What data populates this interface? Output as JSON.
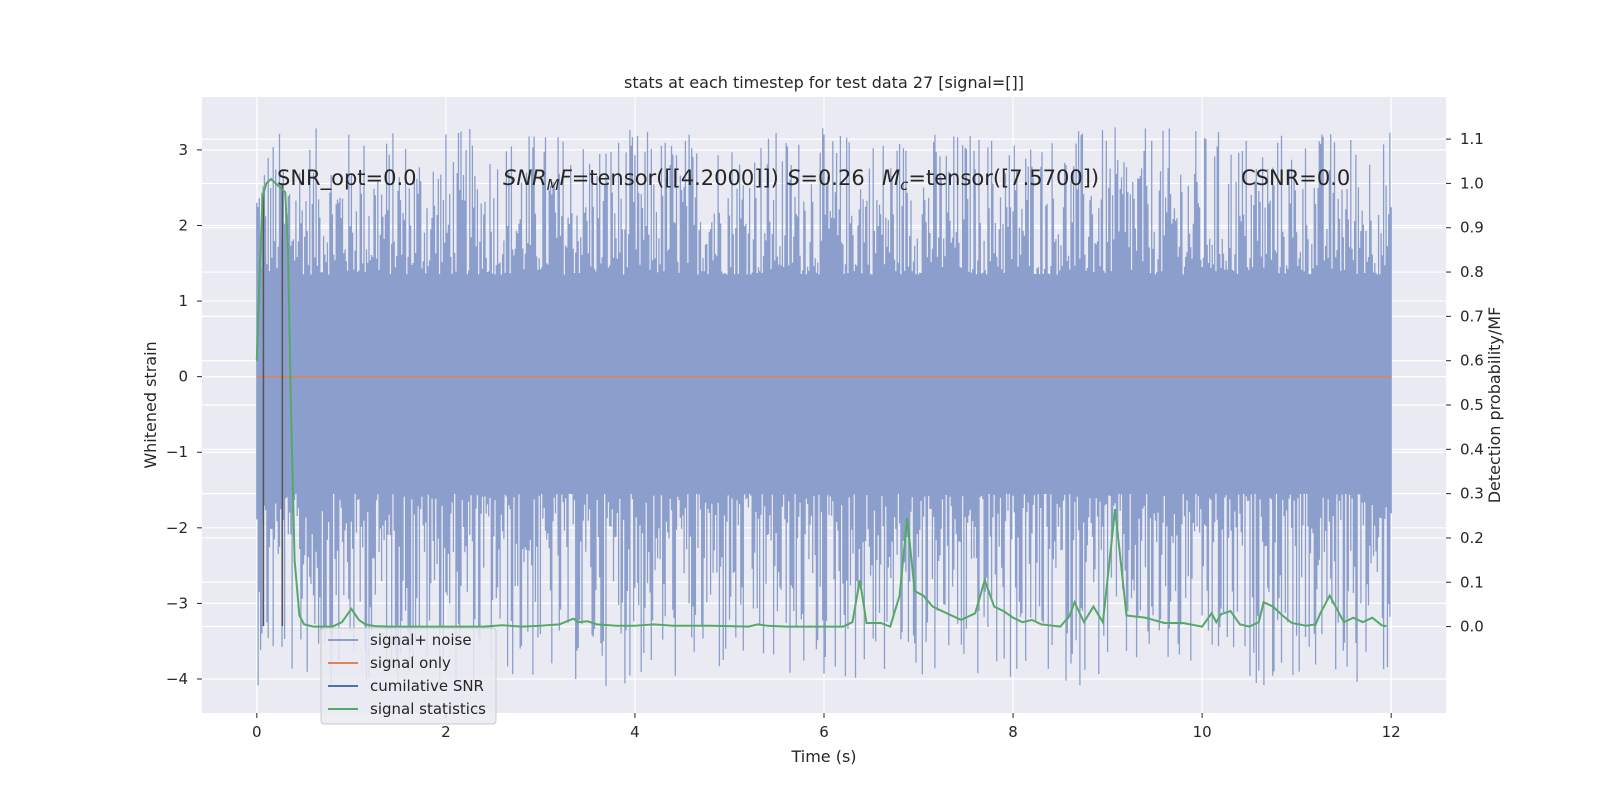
{
  "chart_data": {
    "type": "line",
    "title": "stats at each timestep for test data 27 [signal=[]]",
    "xlabel": "Time (s)",
    "ylabel": "Whitened strain",
    "ylabel_right": "Detection probability/MF",
    "xlim": [
      -0.58,
      12.58
    ],
    "ylim": [
      -4.45,
      3.7
    ],
    "ylim_right": [
      -0.195,
      1.195
    ],
    "x_ticks": [
      0,
      2,
      4,
      6,
      8,
      10,
      12
    ],
    "x_tick_labels": [
      "0",
      "2",
      "4",
      "6",
      "8",
      "10",
      "12"
    ],
    "y_ticks": [
      3,
      2,
      1,
      0,
      -1,
      -2,
      -3,
      -4
    ],
    "y_tick_labels": [
      "3",
      "2",
      "1",
      "0",
      "−1",
      "−2",
      "−3",
      "−4"
    ],
    "y_right_ticks": [
      1.1,
      1.0,
      0.9,
      0.8,
      0.7,
      0.6,
      0.5,
      0.4,
      0.3,
      0.2,
      0.1,
      0.0
    ],
    "y_right_tick_labels": [
      "1.1",
      "1.0",
      "0.9",
      "0.8",
      "0.7",
      "0.6",
      "0.5",
      "0.4",
      "0.3",
      "0.2",
      "0.1",
      "0.0"
    ],
    "grid": true,
    "legend_position": "lower-left",
    "legend": [
      {
        "label": "signal+ noise",
        "color": "#8c9fcc"
      },
      {
        "label": "signal only",
        "color": "#dd8452"
      },
      {
        "label": "cumilative SNR",
        "color": "#4c72b0"
      },
      {
        "label": "signal statistics",
        "color": "#55a868"
      }
    ],
    "annotations": {
      "snr_opt": "SNR_opt=0.0",
      "snr_mf_sym": "SNR",
      "snr_mf_sub": "M",
      "snr_mf_sym2": "F",
      "snr_mf_val": "=tensor([[4.2000]])",
      "s_sym": "S",
      "s_val": "=0.26",
      "mc_sym": "M",
      "mc_sub": "c",
      "mc_val": "=tensor([7.5700])",
      "csnr": "CSNR=0.0"
    },
    "series": [
      {
        "name": "signal+ noise",
        "color": "#8c9fcc",
        "style": "dense-noise",
        "x_range": [
          0,
          12
        ],
        "core_band": [
          -1.55,
          1.35
        ],
        "max": 3.3,
        "min": -4.1
      },
      {
        "name": "signal only",
        "color": "#dd8452",
        "x": [
          0,
          12
        ],
        "y": [
          0,
          0
        ]
      },
      {
        "name": "cumilative SNR",
        "color": "#555555",
        "style": "vertical-lines",
        "x": [
          0.07,
          0.27
        ],
        "y_top": [
          2.45,
          2.55
        ],
        "y_bottom": -3.3
      },
      {
        "name": "signal statistics",
        "color": "#55a868",
        "axis": "right",
        "x": [
          0.0,
          0.03,
          0.06,
          0.1,
          0.15,
          0.2,
          0.25,
          0.3,
          0.33,
          0.36,
          0.4,
          0.45,
          0.5,
          0.6,
          0.7,
          0.8,
          0.9,
          1.0,
          1.08,
          1.15,
          1.25,
          1.4,
          1.6,
          1.8,
          2.0,
          2.2,
          2.4,
          2.6,
          2.8,
          3.0,
          3.2,
          3.35,
          3.4,
          3.5,
          3.6,
          3.8,
          4.0,
          4.2,
          4.4,
          4.6,
          4.8,
          5.0,
          5.2,
          5.3,
          5.4,
          5.6,
          5.8,
          6.0,
          6.2,
          6.3,
          6.38,
          6.45,
          6.6,
          6.7,
          6.8,
          6.88,
          6.96,
          7.05,
          7.15,
          7.3,
          7.45,
          7.6,
          7.7,
          7.8,
          7.9,
          8.0,
          8.1,
          8.2,
          8.3,
          8.5,
          8.6,
          8.65,
          8.75,
          8.85,
          8.95,
          9.08,
          9.2,
          9.4,
          9.6,
          9.8,
          10.0,
          10.1,
          10.15,
          10.2,
          10.3,
          10.4,
          10.5,
          10.6,
          10.65,
          10.75,
          10.85,
          10.95,
          11.1,
          11.2,
          11.25,
          11.35,
          11.5,
          11.6,
          11.7,
          11.8,
          11.9,
          11.95
        ],
        "y": [
          0.6,
          0.8,
          0.97,
          1.0,
          1.01,
          1.0,
          0.99,
          0.98,
          0.85,
          0.5,
          0.15,
          0.025,
          0.005,
          0.0,
          0.0,
          0.0,
          0.01,
          0.04,
          0.015,
          0.005,
          0.001,
          0.0,
          0.0,
          0.0,
          0.0,
          0.0,
          0.0,
          0.003,
          0.0,
          0.002,
          0.005,
          0.018,
          0.01,
          0.012,
          0.005,
          0.002,
          0.002,
          0.005,
          0.002,
          0.002,
          0.002,
          0.001,
          0.0,
          0.005,
          0.002,
          0.0,
          0.0,
          0.0,
          0.0,
          0.01,
          0.105,
          0.008,
          0.008,
          0.0,
          0.07,
          0.245,
          0.08,
          0.07,
          0.045,
          0.03,
          0.015,
          0.03,
          0.105,
          0.045,
          0.035,
          0.02,
          0.01,
          0.015,
          0.005,
          0.0,
          0.025,
          0.055,
          0.01,
          0.045,
          0.01,
          0.265,
          0.025,
          0.02,
          0.008,
          0.008,
          0.0,
          0.03,
          0.01,
          0.028,
          0.035,
          0.005,
          0.0,
          0.01,
          0.055,
          0.045,
          0.025,
          0.008,
          0.002,
          0.005,
          0.03,
          0.07,
          0.01,
          0.02,
          0.01,
          0.02,
          0.003,
          0.001
        ]
      }
    ]
  }
}
